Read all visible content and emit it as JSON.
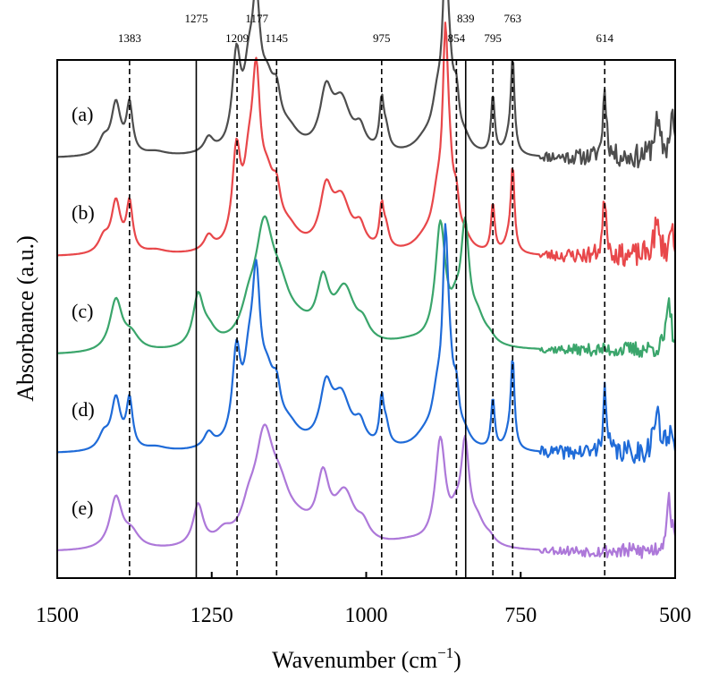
{
  "chart_data": {
    "type": "line",
    "xlabel_main": "Wavenumber (cm",
    "xlabel_exp": "−1",
    "xlabel_close": ")",
    "ylabel": "Absorbance (a.u.)",
    "xlim": [
      1500,
      500
    ],
    "x_reversed": true,
    "x_ticks": [
      1500,
      1250,
      1000,
      750,
      500
    ],
    "x_tick_labels": [
      "1500",
      "1250",
      "1000",
      "750",
      "500"
    ],
    "y_ticks": "none",
    "grid": false,
    "legend": "inline labels at left of each trace",
    "reference_lines": [
      {
        "x": 1383,
        "label": "1383",
        "style": "dashed",
        "label_row": "low"
      },
      {
        "x": 1275,
        "label": "1275",
        "style": "solid",
        "label_row": "high"
      },
      {
        "x": 1209,
        "label": "1209",
        "style": "dashed",
        "label_row": "low"
      },
      {
        "x": 1177,
        "label": "1177",
        "style": "none",
        "label_row": "high"
      },
      {
        "x": 1145,
        "label": "1145",
        "style": "dashed",
        "label_row": "low"
      },
      {
        "x": 975,
        "label": "975",
        "style": "dashed",
        "label_row": "low"
      },
      {
        "x": 854,
        "label": "854",
        "style": "dashed",
        "label_row": "low"
      },
      {
        "x": 839,
        "label": "839",
        "style": "solid",
        "label_row": "high"
      },
      {
        "x": 795,
        "label": "795",
        "style": "dashed",
        "label_row": "low"
      },
      {
        "x": 763,
        "label": "763",
        "style": "dashed",
        "label_row": "high"
      },
      {
        "x": 614,
        "label": "614",
        "style": "dashed",
        "label_row": "low"
      }
    ],
    "series": [
      {
        "label": "(a)",
        "color": "#4d4d4d",
        "offset": 4.0,
        "baseline": 0.0,
        "baseline_end": 0.0,
        "noise": 0.05,
        "seed": 11,
        "peaks": [
          [
            1425,
            10,
            0.15
          ],
          [
            1405,
            9,
            0.52
          ],
          [
            1383,
            6,
            0.5
          ],
          [
            1340,
            20,
            0.04
          ],
          [
            1255,
            9,
            0.15
          ],
          [
            1210,
            8,
            0.9
          ],
          [
            1190,
            10,
            0.6
          ],
          [
            1178,
            8,
            1.2
          ],
          [
            1160,
            14,
            0.55
          ],
          [
            1145,
            8,
            0.35
          ],
          [
            1125,
            20,
            0.18
          ],
          [
            1065,
            12,
            0.55
          ],
          [
            1040,
            18,
            0.5
          ],
          [
            1010,
            10,
            0.2
          ],
          [
            975,
            4,
            0.48
          ],
          [
            968,
            6,
            0.2
          ],
          [
            905,
            20,
            0.12
          ],
          [
            885,
            10,
            0.4
          ],
          [
            872,
            5,
            1.3
          ],
          [
            867,
            10,
            0.75
          ],
          [
            854,
            5,
            0.38
          ],
          [
            840,
            10,
            0.1
          ],
          [
            795,
            3.5,
            0.6
          ],
          [
            770,
            8,
            0.12
          ],
          [
            763,
            3.5,
            0.95
          ],
          [
            614,
            3.5,
            0.7
          ],
          [
            530,
            6,
            0.35
          ],
          [
            505,
            4,
            0.45
          ]
        ]
      },
      {
        "label": "(b)",
        "color": "#e8474a",
        "offset": 3.0,
        "baseline": 0.0,
        "baseline_end": 0.0,
        "noise": 0.05,
        "seed": 23,
        "peaks": [
          [
            1425,
            10,
            0.15
          ],
          [
            1405,
            9,
            0.52
          ],
          [
            1383,
            6,
            0.5
          ],
          [
            1340,
            20,
            0.04
          ],
          [
            1255,
            9,
            0.15
          ],
          [
            1210,
            8,
            0.92
          ],
          [
            1190,
            10,
            0.6
          ],
          [
            1178,
            8,
            1.45
          ],
          [
            1160,
            14,
            0.55
          ],
          [
            1145,
            8,
            0.35
          ],
          [
            1125,
            20,
            0.18
          ],
          [
            1065,
            12,
            0.55
          ],
          [
            1040,
            18,
            0.5
          ],
          [
            1010,
            10,
            0.2
          ],
          [
            975,
            4,
            0.4
          ],
          [
            968,
            6,
            0.2
          ],
          [
            905,
            20,
            0.12
          ],
          [
            885,
            10,
            0.4
          ],
          [
            872,
            5,
            1.55
          ],
          [
            867,
            10,
            0.75
          ],
          [
            854,
            5,
            0.3
          ],
          [
            840,
            10,
            0.1
          ],
          [
            795,
            3.5,
            0.5
          ],
          [
            770,
            8,
            0.12
          ],
          [
            763,
            3.5,
            0.85
          ],
          [
            614,
            3.5,
            0.62
          ],
          [
            530,
            6,
            0.3
          ],
          [
            505,
            4,
            0.3
          ]
        ]
      },
      {
        "label": "(c)",
        "color": "#3aa56b",
        "offset": 2.0,
        "baseline": 0.0,
        "baseline_end": 0.05,
        "noise": 0.035,
        "seed": 37,
        "peaks": [
          [
            1405,
            12,
            0.52
          ],
          [
            1380,
            15,
            0.15
          ],
          [
            1272,
            10,
            0.5
          ],
          [
            1255,
            15,
            0.15
          ],
          [
            1190,
            15,
            0.25
          ],
          [
            1165,
            18,
            1.1
          ],
          [
            1140,
            20,
            0.4
          ],
          [
            1110,
            30,
            0.15
          ],
          [
            1070,
            12,
            0.55
          ],
          [
            1035,
            20,
            0.55
          ],
          [
            1005,
            12,
            0.15
          ],
          [
            930,
            40,
            0.06
          ],
          [
            880,
            10,
            1.2
          ],
          [
            855,
            10,
            0.25
          ],
          [
            840,
            8,
            1.1
          ],
          [
            820,
            15,
            0.25
          ],
          [
            800,
            10,
            0.06
          ],
          [
            510,
            5,
            0.45
          ]
        ]
      },
      {
        "label": "(d)",
        "color": "#1f6bd8",
        "offset": 1.0,
        "baseline": 0.0,
        "baseline_end": 0.0,
        "noise": 0.05,
        "seed": 41,
        "peaks": [
          [
            1425,
            10,
            0.15
          ],
          [
            1405,
            9,
            0.52
          ],
          [
            1383,
            6,
            0.5
          ],
          [
            1340,
            20,
            0.04
          ],
          [
            1255,
            9,
            0.15
          ],
          [
            1210,
            8,
            0.88
          ],
          [
            1190,
            10,
            0.6
          ],
          [
            1178,
            8,
            1.4
          ],
          [
            1160,
            14,
            0.55
          ],
          [
            1145,
            8,
            0.35
          ],
          [
            1125,
            20,
            0.18
          ],
          [
            1065,
            12,
            0.55
          ],
          [
            1040,
            18,
            0.5
          ],
          [
            1010,
            10,
            0.2
          ],
          [
            975,
            4,
            0.45
          ],
          [
            968,
            6,
            0.2
          ],
          [
            905,
            20,
            0.12
          ],
          [
            885,
            10,
            0.4
          ],
          [
            872,
            5,
            1.5
          ],
          [
            867,
            10,
            0.75
          ],
          [
            854,
            5,
            0.35
          ],
          [
            840,
            10,
            0.1
          ],
          [
            795,
            3.5,
            0.52
          ],
          [
            770,
            8,
            0.12
          ],
          [
            763,
            3.5,
            0.9
          ],
          [
            614,
            3.5,
            0.62
          ],
          [
            530,
            6,
            0.4
          ],
          [
            505,
            4,
            0.3
          ]
        ]
      },
      {
        "label": "(e)",
        "color": "#ad78d9",
        "offset": 0.0,
        "baseline": 0.0,
        "baseline_end": 0.0,
        "noise": 0.035,
        "seed": 53,
        "peaks": [
          [
            1405,
            12,
            0.52
          ],
          [
            1380,
            15,
            0.15
          ],
          [
            1272,
            10,
            0.42
          ],
          [
            1230,
            15,
            0.12
          ],
          [
            1190,
            15,
            0.25
          ],
          [
            1165,
            18,
            1.0
          ],
          [
            1140,
            20,
            0.4
          ],
          [
            1110,
            30,
            0.15
          ],
          [
            1070,
            12,
            0.6
          ],
          [
            1035,
            20,
            0.5
          ],
          [
            1005,
            12,
            0.15
          ],
          [
            930,
            40,
            0.06
          ],
          [
            880,
            10,
            1.05
          ],
          [
            855,
            10,
            0.2
          ],
          [
            840,
            8,
            0.95
          ],
          [
            820,
            15,
            0.22
          ],
          [
            800,
            10,
            0.06
          ],
          [
            510,
            5,
            0.55
          ]
        ]
      }
    ]
  }
}
